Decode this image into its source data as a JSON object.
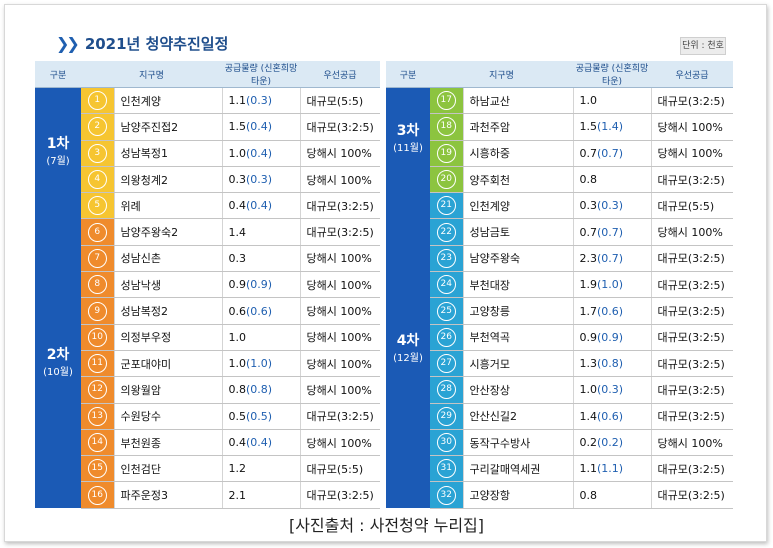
{
  "title": "2021년 청약추진일정",
  "unit": "단위 : 천호",
  "headers": [
    "구분",
    "지구명",
    "공급물량 (신혼희망타운)",
    "우선공급"
  ],
  "caption": "[사진출처 : 사전청약 누리집]",
  "left_groups": [
    {
      "phase": "1차",
      "months": "(7월)"
    },
    {
      "phase": "2차",
      "months": "(10월)"
    }
  ],
  "right_groups": [
    {
      "phase": "3차",
      "months": "(11월)"
    },
    {
      "phase": "4차",
      "months": "(12월)"
    }
  ],
  "rows": [
    {
      "no": "1",
      "name": "인천계양",
      "qty": "1.1",
      "sub": "(0.3)",
      "priority": "대규모(5:5)"
    },
    {
      "no": "2",
      "name": "남양주진접2",
      "qty": "1.5",
      "sub": "(0.4)",
      "priority": "대규모(3:2:5)"
    },
    {
      "no": "3",
      "name": "성남복정1",
      "qty": "1.0",
      "sub": "(0.4)",
      "priority": "당해시 100%"
    },
    {
      "no": "4",
      "name": "의왕청계2",
      "qty": "0.3",
      "sub": "(0.3)",
      "priority": "당해시 100%"
    },
    {
      "no": "5",
      "name": "위례",
      "qty": "0.4",
      "sub": "(0.4)",
      "priority": "대규모(3:2:5)"
    },
    {
      "no": "6",
      "name": "남양주왕숙2",
      "qty": "1.4",
      "sub": "",
      "priority": "대규모(3:2:5)"
    },
    {
      "no": "7",
      "name": "성남신촌",
      "qty": "0.3",
      "sub": "",
      "priority": "당해시 100%"
    },
    {
      "no": "8",
      "name": "성남낙생",
      "qty": "0.9",
      "sub": "(0.9)",
      "priority": "당해시 100%"
    },
    {
      "no": "9",
      "name": "성남복정2",
      "qty": "0.6",
      "sub": "(0.6)",
      "priority": "당해시 100%"
    },
    {
      "no": "10",
      "name": "의정부우정",
      "qty": "1.0",
      "sub": "",
      "priority": "당해시 100%"
    },
    {
      "no": "11",
      "name": "군포대야미",
      "qty": "1.0",
      "sub": "(1.0)",
      "priority": "당해시 100%"
    },
    {
      "no": "12",
      "name": "의왕월암",
      "qty": "0.8",
      "sub": "(0.8)",
      "priority": "당해시 100%"
    },
    {
      "no": "13",
      "name": "수원당수",
      "qty": "0.5",
      "sub": "(0.5)",
      "priority": "대규모(3:2:5)"
    },
    {
      "no": "14",
      "name": "부천원종",
      "qty": "0.4",
      "sub": "(0.4)",
      "priority": "당해시 100%"
    },
    {
      "no": "15",
      "name": "인천검단",
      "qty": "1.2",
      "sub": "",
      "priority": "대규모(5:5)"
    },
    {
      "no": "16",
      "name": "파주운정3",
      "qty": "2.1",
      "sub": "",
      "priority": "대규모(3:2:5)"
    },
    {
      "no": "17",
      "name": "하남교산",
      "qty": "1.0",
      "sub": "",
      "priority": "대규모(3:2:5)"
    },
    {
      "no": "18",
      "name": "과천주암",
      "qty": "1.5",
      "sub": "(1.4)",
      "priority": "당해시 100%"
    },
    {
      "no": "19",
      "name": "시흥하중",
      "qty": "0.7",
      "sub": "(0.7)",
      "priority": "당해시 100%"
    },
    {
      "no": "20",
      "name": "양주회천",
      "qty": "0.8",
      "sub": "",
      "priority": "대규모(3:2:5)"
    },
    {
      "no": "21",
      "name": "인천계양",
      "qty": "0.3",
      "sub": "(0.3)",
      "priority": "대규모(5:5)"
    },
    {
      "no": "22",
      "name": "성남금토",
      "qty": "0.7",
      "sub": "(0.7)",
      "priority": "당해시 100%"
    },
    {
      "no": "23",
      "name": "남양주왕숙",
      "qty": "2.3",
      "sub": "(0.7)",
      "priority": "대규모(3:2:5)"
    },
    {
      "no": "24",
      "name": "부천대장",
      "qty": "1.9",
      "sub": "(1.0)",
      "priority": "대규모(3:2:5)"
    },
    {
      "no": "25",
      "name": "고양창릉",
      "qty": "1.7",
      "sub": "(0.6)",
      "priority": "대규모(3:2:5)"
    },
    {
      "no": "26",
      "name": "부천역곡",
      "qty": "0.9",
      "sub": "(0.9)",
      "priority": "대규모(3:2:5)"
    },
    {
      "no": "27",
      "name": "시흥거모",
      "qty": "1.3",
      "sub": "(0.8)",
      "priority": "대규모(3:2:5)"
    },
    {
      "no": "28",
      "name": "안산장상",
      "qty": "1.0",
      "sub": "(0.3)",
      "priority": "대규모(3:2:5)"
    },
    {
      "no": "29",
      "name": "안산신길2",
      "qty": "1.4",
      "sub": "(0.6)",
      "priority": "대규모(3:2:5)"
    },
    {
      "no": "30",
      "name": "동작구수방사",
      "qty": "0.2",
      "sub": "(0.2)",
      "priority": "당해시 100%"
    },
    {
      "no": "31",
      "name": "구리갈매역세권",
      "qty": "1.1",
      "sub": "(1.1)",
      "priority": "대규모(3:2:5)"
    },
    {
      "no": "32",
      "name": "고양장항",
      "qty": "0.8",
      "sub": "",
      "priority": "대규모(3:2:5)"
    }
  ]
}
